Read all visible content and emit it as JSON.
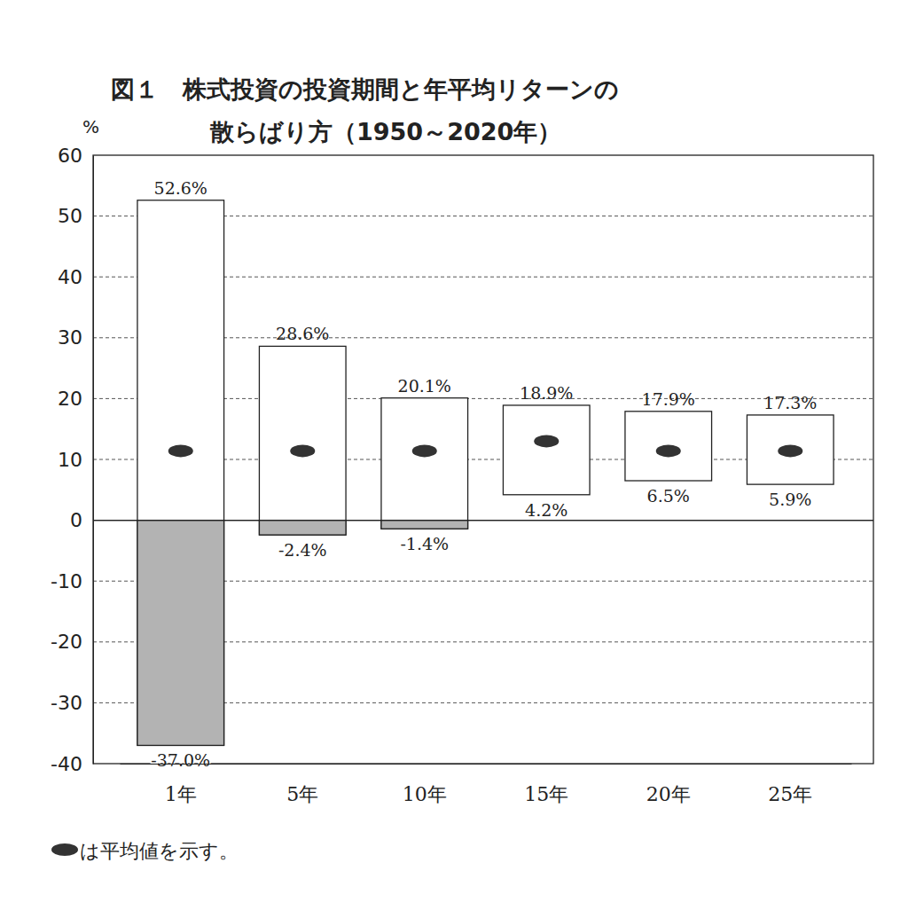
{
  "chart_data": {
    "type": "range_bar",
    "title": "図１　株式投資の投資期間と年平均リターンの",
    "subtitle": "散らばり方（1950～2020年）",
    "y_label": "%",
    "categories": [
      "1年",
      "5年",
      "10年",
      "15年",
      "20年",
      "25年"
    ],
    "high": {
      "values": [
        52.6,
        28.6,
        20.1,
        18.9,
        17.9,
        17.3
      ],
      "value_labels": [
        "52.6%",
        "28.6%",
        "20.1%",
        "18.9%",
        "17.9%",
        "17.3%"
      ]
    },
    "low": {
      "values": [
        -37.0,
        -2.4,
        -1.4,
        4.2,
        6.5,
        5.9
      ],
      "value_labels": [
        "-37.0%",
        "-2.4%",
        "-1.4%",
        "4.2%",
        "6.5%",
        "5.9%"
      ]
    },
    "mean": {
      "values": [
        11.4,
        11.4,
        11.4,
        13.0,
        11.4,
        11.4
      ]
    },
    "legend_note": "は平均値を示す。",
    "ylim": [
      -40,
      60
    ],
    "yticks": [
      -40,
      -30,
      -20,
      -10,
      0,
      10,
      20,
      30,
      40,
      50,
      60
    ],
    "grid": true,
    "data_labels": true
  }
}
